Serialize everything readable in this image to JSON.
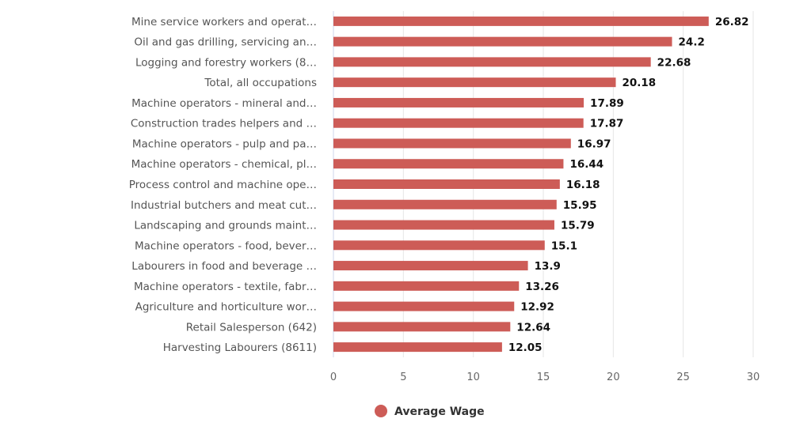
{
  "chart_data": {
    "type": "bar",
    "orientation": "horizontal",
    "title": "",
    "xlabel": "",
    "ylabel": "",
    "xlim": [
      0,
      30
    ],
    "ticks": [
      0,
      5,
      10,
      15,
      20,
      25,
      30
    ],
    "grid": true,
    "legend_placement": "bottom-center",
    "color": "#cd5c57",
    "categories": [
      "Mine service workers and operat…",
      "Oil and gas drilling, servicing an…",
      "Logging and forestry workers (8…",
      "Total, all occupations",
      "Machine operators - mineral and…",
      "Construction trades helpers and …",
      "Machine operators - pulp and pa…",
      "Machine operators - chemical, pl…",
      "Process control and machine ope…",
      "Industrial butchers and meat cut…",
      "Landscaping and grounds maint…",
      "Machine operators - food, bever…",
      "Labourers in food and beverage …",
      "Machine operators - textile, fabr…",
      "Agriculture and horticulture wor…",
      "Retail Salesperson (642)",
      "Harvesting Labourers (8611)"
    ],
    "series": [
      {
        "name": "Average Wage",
        "values": [
          26.82,
          24.2,
          22.68,
          20.18,
          17.89,
          17.87,
          16.97,
          16.44,
          16.18,
          15.95,
          15.79,
          15.1,
          13.9,
          13.26,
          12.92,
          12.64,
          12.05
        ]
      }
    ]
  }
}
